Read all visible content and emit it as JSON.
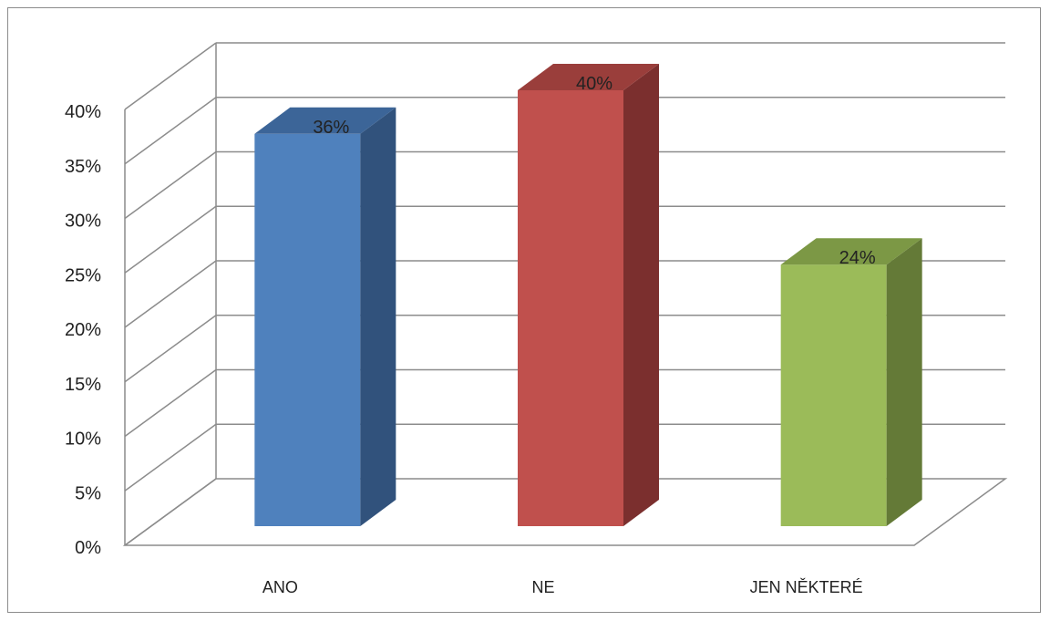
{
  "chart_data": {
    "type": "bar",
    "style": "3d-clustered-column",
    "categories": [
      "ANO",
      "NE",
      "JEN NĚKTERÉ"
    ],
    "values": [
      36,
      40,
      24
    ],
    "data_labels": [
      "36%",
      "40%",
      "24%"
    ],
    "ylim": [
      0,
      40
    ],
    "yticks": [
      "0%",
      "5%",
      "10%",
      "15%",
      "20%",
      "25%",
      "30%",
      "35%",
      "40%"
    ],
    "grid": true,
    "legend": "none",
    "title": "",
    "xlabel": "",
    "ylabel": "",
    "colors": {
      "bars": [
        {
          "front": "#4f81bd",
          "side": "#31527c",
          "top": "#3c6598"
        },
        {
          "front": "#c0504d",
          "side": "#7b2f2e",
          "top": "#9a3e3b"
        },
        {
          "front": "#9bbb59",
          "side": "#647a37",
          "top": "#7c9845"
        }
      ],
      "grid": "#8c8c8c",
      "text": "#222222"
    }
  }
}
